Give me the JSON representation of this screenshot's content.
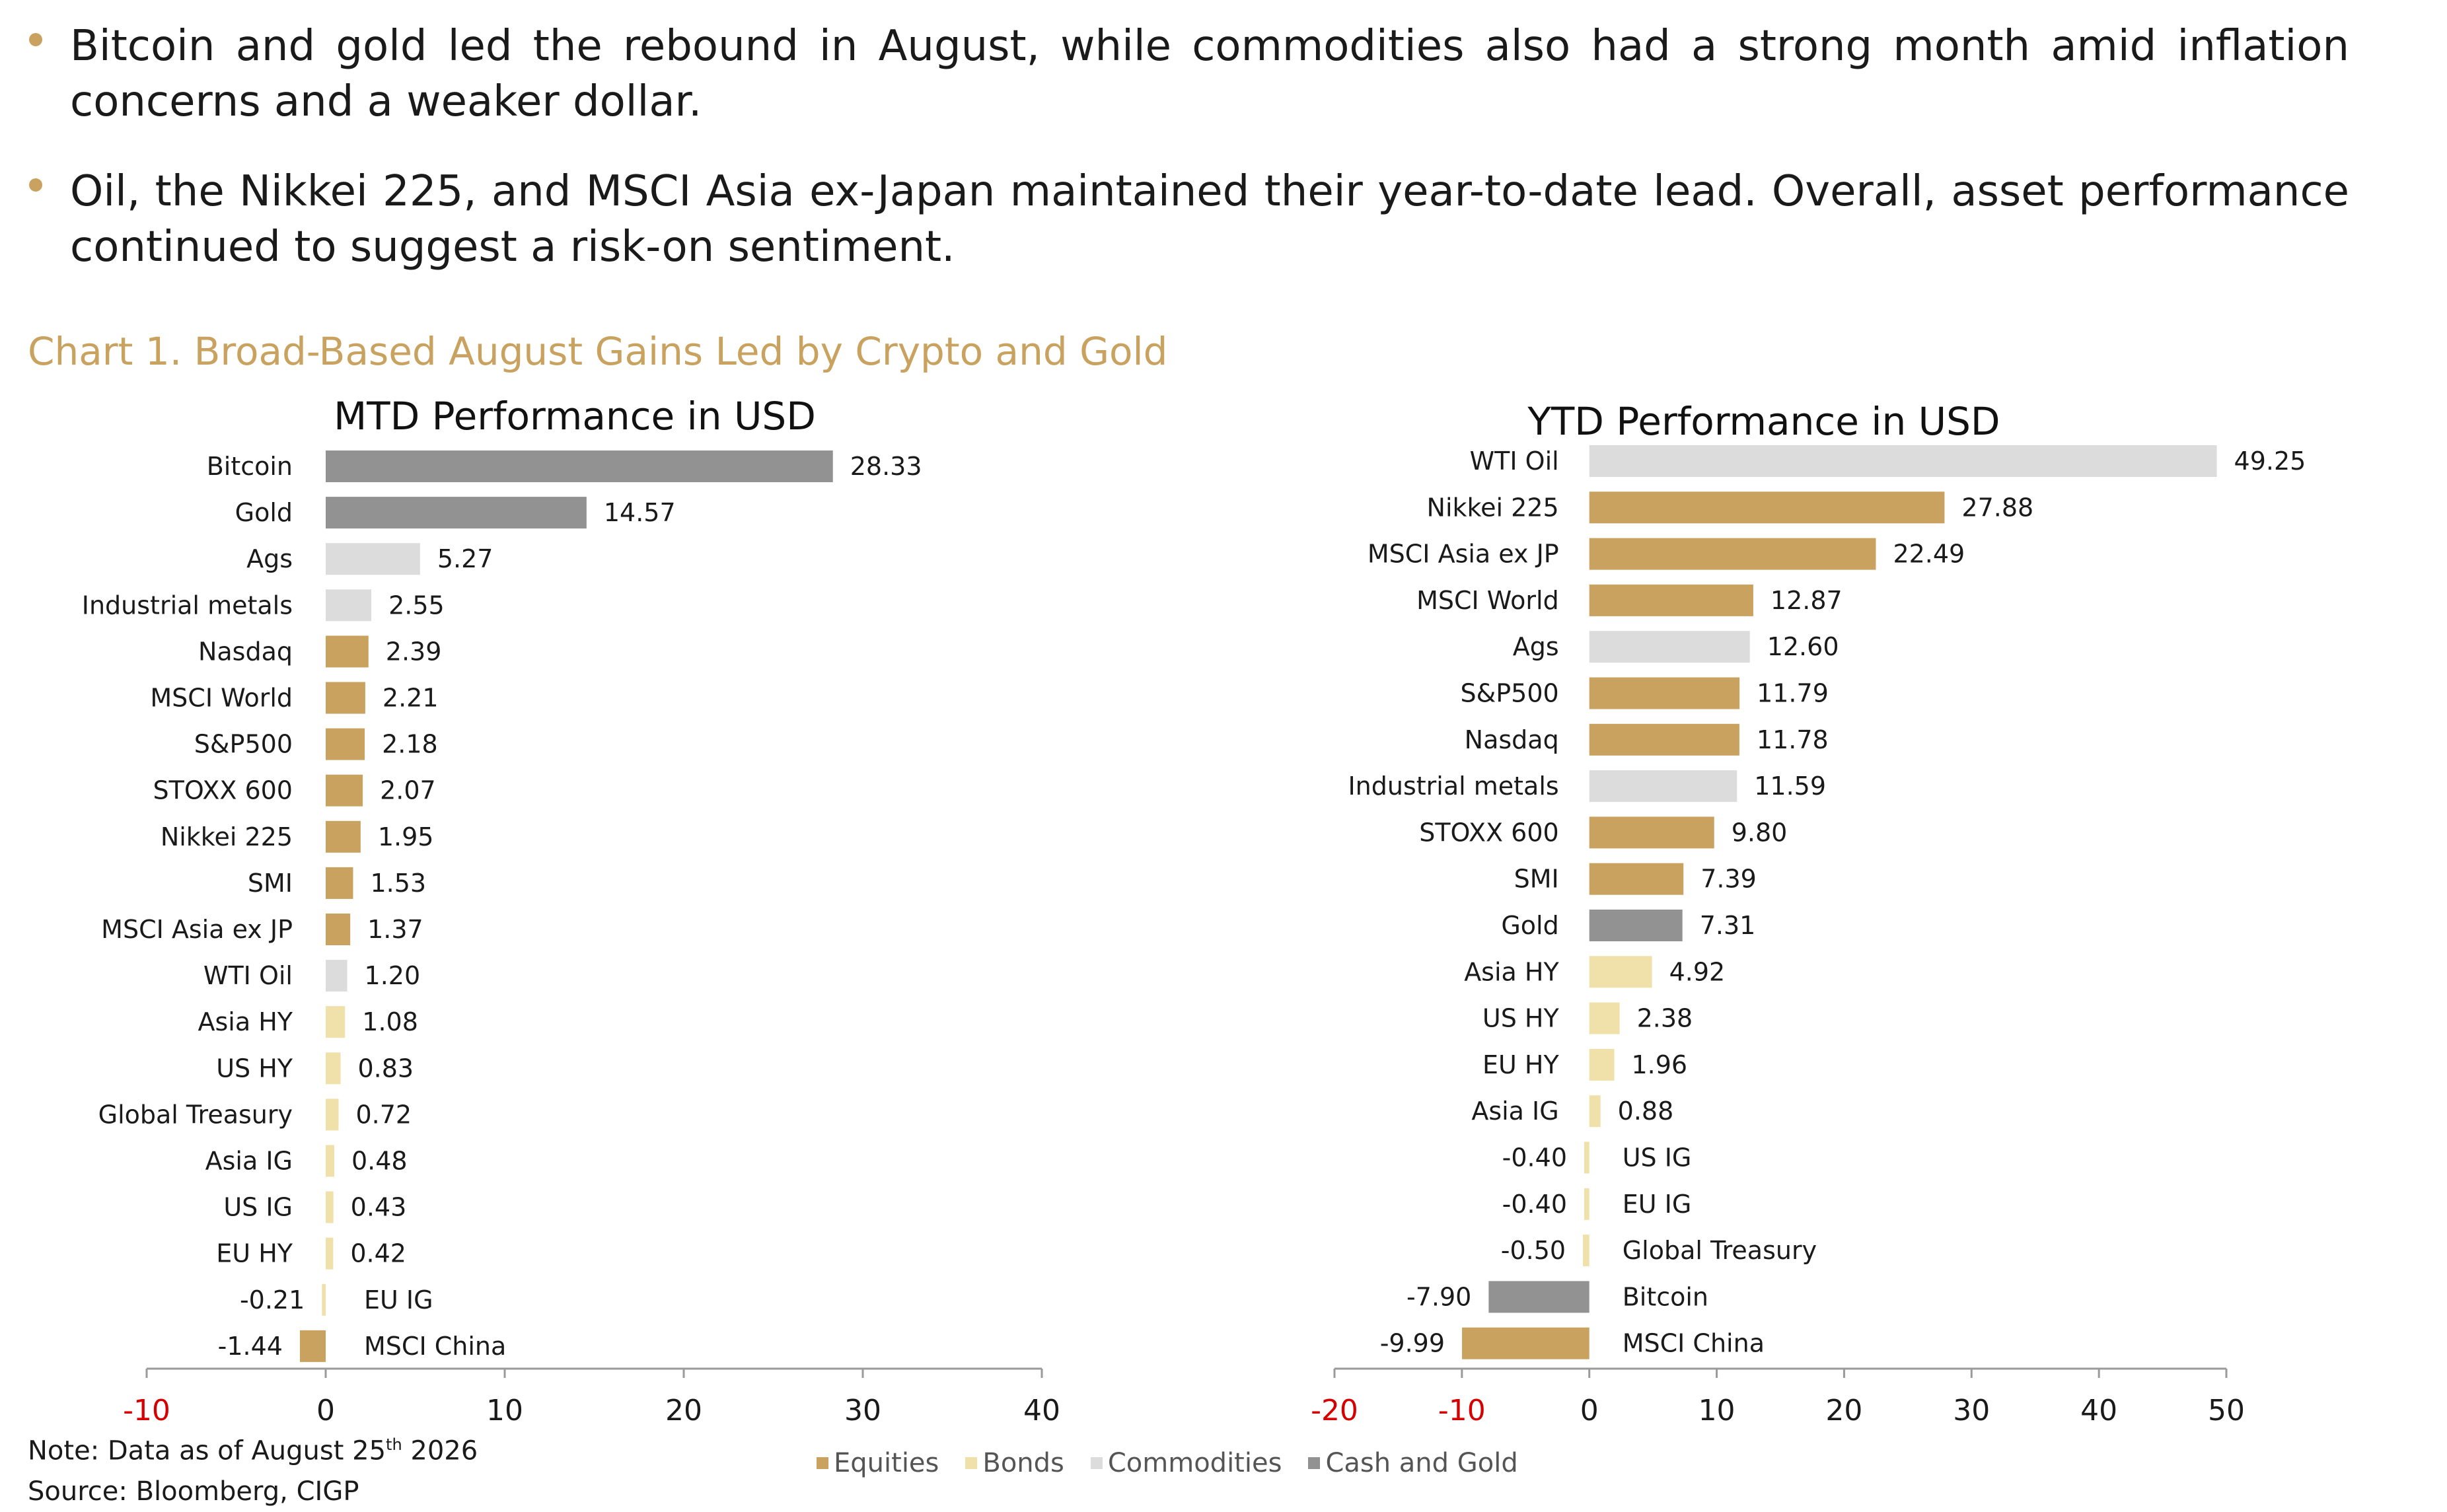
{
  "bullets": [
    "Bitcoin and gold led the rebound in August, while commodities also had a strong month amid inflation concerns and a weaker dollar.",
    "Oil, the Nikkei 225, and MSCI Asia ex-Japan maintained their year-to-date lead. Overall, asset performance continued to suggest a risk-on sentiment."
  ],
  "colors": {
    "accent": "#c9a25f",
    "Equities": "#c9a25f",
    "Bonds": "#f0e1aa",
    "Commodities": "#dcdcdc",
    "Cash and Gold": "#929292"
  },
  "chart_title": "Chart 1. Broad-Based August Gains Led by Crypto and Gold",
  "chart_data": [
    {
      "type": "bar",
      "orientation": "horizontal",
      "title": "MTD Performance in USD",
      "xlim": [
        -10,
        40
      ],
      "xticks": [
        -10,
        0,
        10,
        20,
        30,
        40
      ],
      "categories": [
        "Bitcoin",
        "Gold",
        "Ags",
        "Industrial metals",
        "Nasdaq",
        "MSCI World",
        "S&P500",
        "STOXX 600",
        "Nikkei 225",
        "SMI",
        "MSCI Asia ex JP",
        "WTI Oil",
        "Asia HY",
        "US HY",
        "Global Treasury",
        "Asia IG",
        "US IG",
        "EU HY",
        "EU IG",
        "MSCI China"
      ],
      "values": [
        28.33,
        14.57,
        5.27,
        2.55,
        2.39,
        2.21,
        2.18,
        2.07,
        1.95,
        1.53,
        1.37,
        1.2,
        1.08,
        0.83,
        0.72,
        0.48,
        0.43,
        0.42,
        -0.21,
        -1.44
      ],
      "labels": [
        "28.33",
        "14.57",
        "5.27",
        "2.55",
        "2.39",
        "2.21",
        "2.18",
        "2.07",
        "1.95",
        "1.53",
        "1.37",
        "1.20",
        "1.08",
        "0.83",
        "0.72",
        "0.48",
        "0.43",
        "0.42",
        "-0.21",
        "-1.44"
      ],
      "groups": [
        "Cash and Gold",
        "Cash and Gold",
        "Commodities",
        "Commodities",
        "Equities",
        "Equities",
        "Equities",
        "Equities",
        "Equities",
        "Equities",
        "Equities",
        "Commodities",
        "Bonds",
        "Bonds",
        "Bonds",
        "Bonds",
        "Bonds",
        "Bonds",
        "Bonds",
        "Equities"
      ]
    },
    {
      "type": "bar",
      "orientation": "horizontal",
      "title": "YTD Performance in USD",
      "xlim": [
        -20,
        50
      ],
      "xticks": [
        -20,
        -10,
        0,
        10,
        20,
        30,
        40,
        50
      ],
      "categories": [
        "WTI Oil",
        "Nikkei 225",
        "MSCI Asia ex JP",
        "MSCI World",
        "Ags",
        "S&P500",
        "Nasdaq",
        "Industrial metals",
        "STOXX 600",
        "SMI",
        "Gold",
        "Asia HY",
        "US HY",
        "EU HY",
        "Asia IG",
        "US IG",
        "EU IG",
        "Global Treasury",
        "Bitcoin",
        "MSCI China"
      ],
      "values": [
        49.25,
        27.88,
        22.49,
        12.87,
        12.6,
        11.79,
        11.78,
        11.59,
        9.8,
        7.39,
        7.31,
        4.92,
        2.38,
        1.96,
        0.88,
        -0.4,
        -0.4,
        -0.5,
        -7.9,
        -9.99
      ],
      "labels": [
        "49.25",
        "27.88",
        "22.49",
        "12.87",
        "12.60",
        "11.79",
        "11.78",
        "11.59",
        "9.80",
        "7.39",
        "7.31",
        "4.92",
        "2.38",
        "1.96",
        "0.88",
        "-0.40",
        "-0.40",
        "-0.50",
        "-7.90",
        "-9.99"
      ],
      "groups": [
        "Commodities",
        "Equities",
        "Equities",
        "Equities",
        "Commodities",
        "Equities",
        "Equities",
        "Commodities",
        "Equities",
        "Equities",
        "Cash and Gold",
        "Bonds",
        "Bonds",
        "Bonds",
        "Bonds",
        "Bonds",
        "Bonds",
        "Bonds",
        "Cash and Gold",
        "Equities"
      ]
    }
  ],
  "legend": [
    "Equities",
    "Bonds",
    "Commodities",
    "Cash and Gold"
  ],
  "note": {
    "prefix": "Note: Data as of August 25",
    "sup": "th",
    "suffix": " 2026",
    "source": "Source: Bloomberg, CIGP"
  }
}
